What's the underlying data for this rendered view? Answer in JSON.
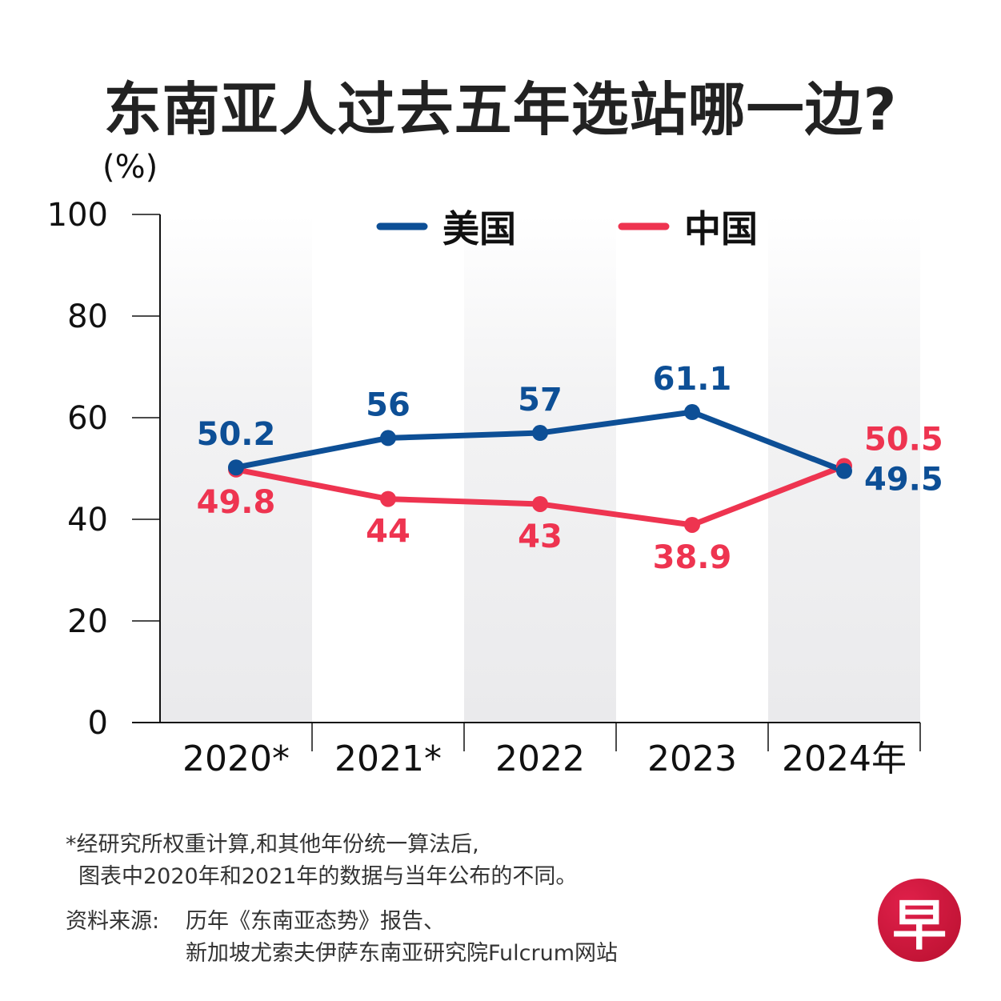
{
  "header": {
    "title": "东南亚人过去五年选站哪一边?",
    "unit": "(%)"
  },
  "colors": {
    "us": "#0d4f96",
    "china": "#ee3450",
    "band": "#ececee",
    "axis": "#111111"
  },
  "chart_data": {
    "type": "line",
    "title": "东南亚人过去五年选站哪一边?",
    "xlabel": "",
    "ylabel": "(%)",
    "ylim": [
      0,
      100
    ],
    "yticks": [
      0,
      20,
      40,
      60,
      80,
      100
    ],
    "categories": [
      "2020*",
      "2021*",
      "2022",
      "2023",
      "2024年"
    ],
    "legend_position": "top-center",
    "grid": false,
    "series": [
      {
        "name": "美国",
        "color": "#0d4f96",
        "values": [
          50.2,
          56,
          57,
          61.1,
          49.5
        ],
        "labels": [
          "50.2",
          "56",
          "57",
          "61.1",
          "49.5"
        ]
      },
      {
        "name": "中国",
        "color": "#ee3450",
        "values": [
          49.8,
          44,
          43,
          38.9,
          50.5
        ],
        "labels": [
          "49.8",
          "44",
          "43",
          "38.9",
          "50.5"
        ]
      }
    ]
  },
  "footnote": {
    "line1": "*经研究所权重计算,和其他年份统一算法后,",
    "line2": "图表中2020年和2021年的数据与当年公布的不同。"
  },
  "source": {
    "label": "资料来源:",
    "line1": "历年《东南亚态势》报告、",
    "line2": "新加坡尤索夫伊萨东南亚研究院Fulcrum网站"
  },
  "logo": {
    "glyph": "早"
  }
}
